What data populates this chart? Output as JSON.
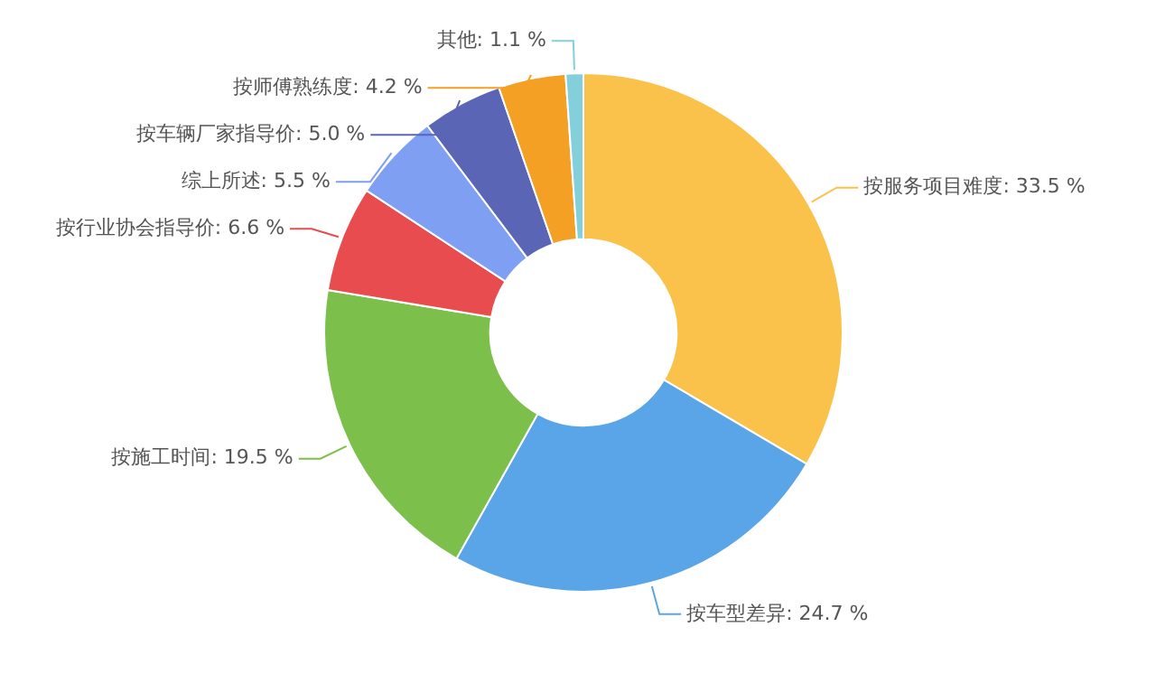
{
  "chart_data": {
    "type": "donut",
    "categories": [
      "按服务项目难度",
      "按车型差异",
      "按施工时间",
      "按行业协会指导价",
      "综上所述",
      "按车辆厂家指导价",
      "按师傅熟练度",
      "其他"
    ],
    "values": [
      33.5,
      24.7,
      19.5,
      6.6,
      5.5,
      5.0,
      4.2,
      1.1
    ],
    "value_labels": [
      "33.5 %",
      "24.7 %",
      "19.5 %",
      "6.6 %",
      "5.5 %",
      "5.0 %",
      "4.2 %",
      "1.1 %"
    ],
    "colors": [
      "#fac24a",
      "#5aa5e8",
      "#7dbf4b",
      "#e84c4f",
      "#7f9ff2",
      "#5a65b5",
      "#f4a024",
      "#83d0dc"
    ]
  }
}
